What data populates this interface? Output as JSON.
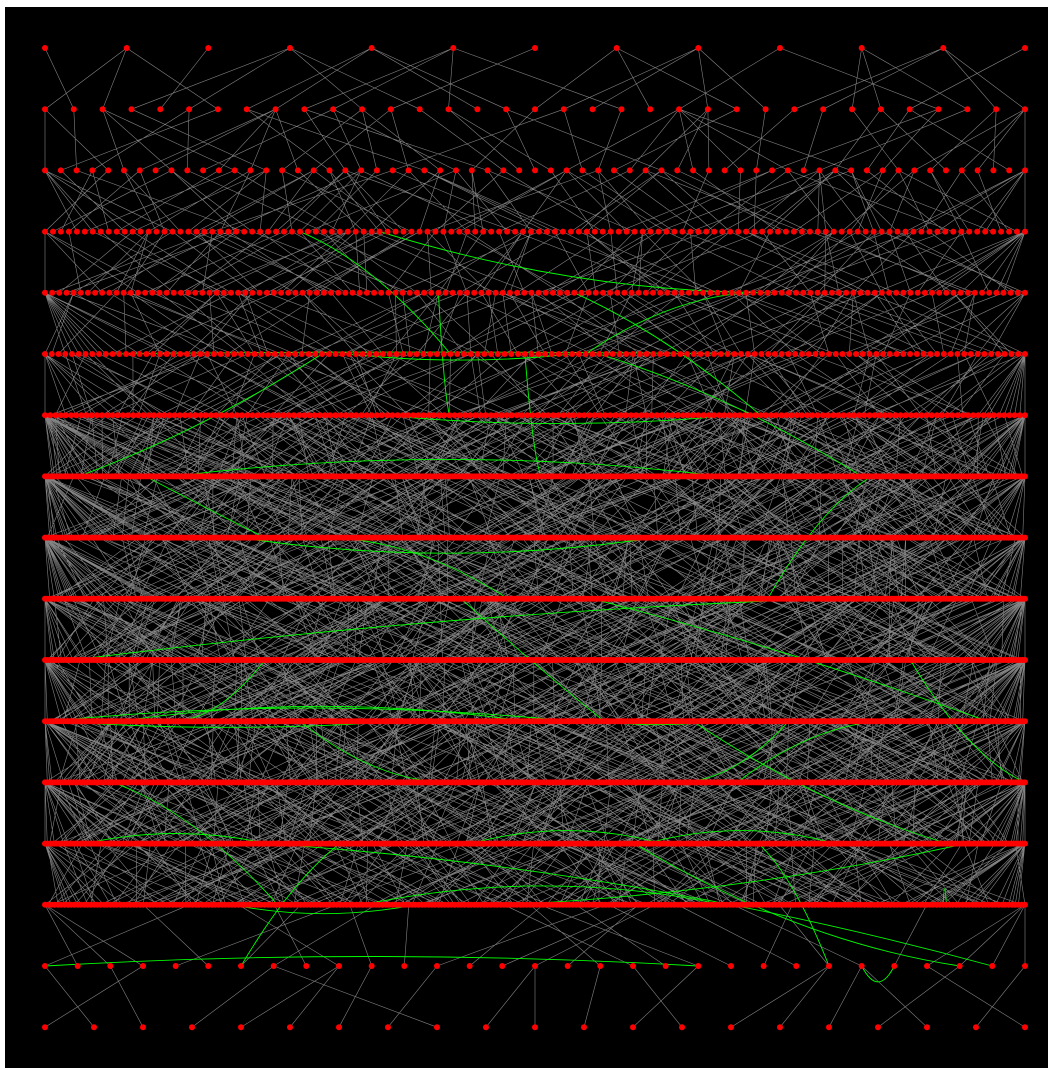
{
  "graph": {
    "type": "layered-graph",
    "background_color": "#000000",
    "page_color": "#ffffff",
    "node_color": "#ff0000",
    "tree_edge_color": "#9a9a9a",
    "cross_edge_color": "#00ff00",
    "layers": [
      13,
      35,
      63,
      124,
      138,
      146,
      190,
      410,
      420,
      420,
      420,
      420,
      420,
      420,
      300,
      31,
      21
    ],
    "cross_edge_count": 45
  }
}
